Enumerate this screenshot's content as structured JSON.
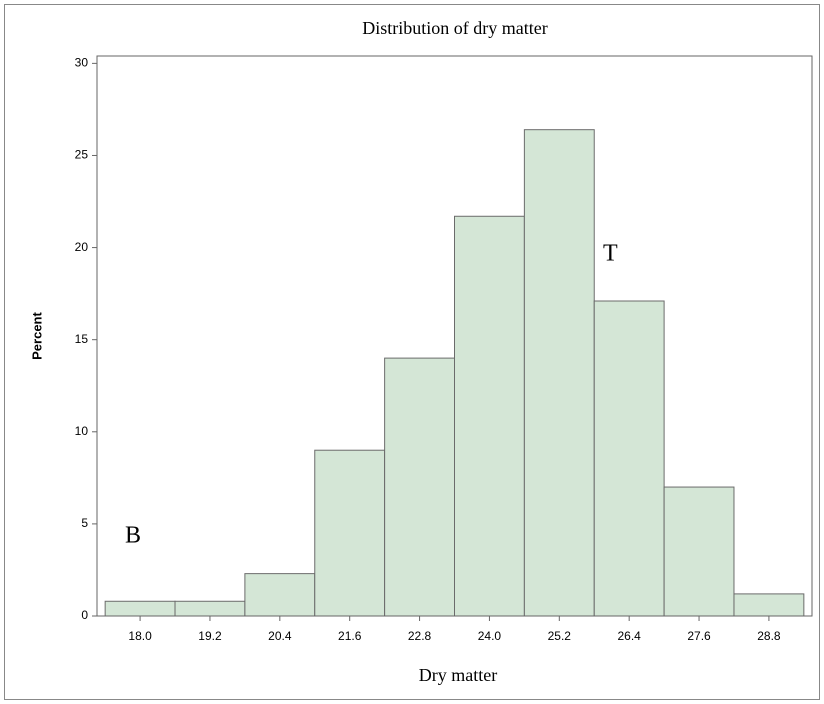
{
  "chart_data": {
    "type": "histogram",
    "title": "Distribution of dry matter",
    "xlabel": "Dry matter",
    "ylabel": "Percent",
    "bins": [
      17.4,
      18.6,
      19.8,
      21.0,
      22.2,
      23.4,
      24.6,
      25.8,
      27.0,
      28.2,
      29.4
    ],
    "values": [
      0.8,
      0.8,
      2.3,
      9.0,
      14.0,
      21.7,
      26.4,
      17.1,
      7.0,
      1.2
    ],
    "color": "#d4e6d6",
    "edgecolor": "#6b6b6b",
    "xlim": [
      17.26,
      29.54
    ],
    "ylim": [
      0,
      30.4
    ],
    "xticks": [
      {
        "value": 18.0,
        "label": "18.0"
      },
      19.2,
      20.4,
      21.6,
      22.8,
      {
        "value": 24.0,
        "label": "24.0"
      },
      25.2,
      26.4,
      27.6,
      28.8
    ],
    "yticks": [
      0,
      5,
      10,
      15,
      20,
      25,
      30
    ],
    "annotations": [
      "B",
      "T"
    ]
  }
}
